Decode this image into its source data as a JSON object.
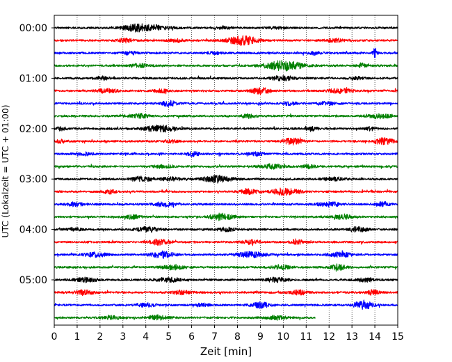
{
  "chart_data": {
    "type": "line",
    "title": "",
    "xlabel": "Zeit  [min]",
    "ylabel": "UTC (Lokalzeit = UTC + 01:00)",
    "xlim": [
      0,
      15
    ],
    "x_ticks": [
      "0",
      "1",
      "2",
      "3",
      "4",
      "5",
      "6",
      "7",
      "8",
      "9",
      "10",
      "11",
      "12",
      "13",
      "14",
      "15"
    ],
    "y_ticks": [
      "00:00",
      "01:00",
      "02:00",
      "03:00",
      "04:00",
      "05:00"
    ],
    "grid": "vertical dotted lines at each minute",
    "line_colors": [
      "#000000",
      "#ff0000",
      "#0000ff",
      "#008000"
    ],
    "trace_minutes": 15,
    "last_trace_end_minute": 11.4,
    "series": [
      {
        "start": "00:00",
        "color": "#000000",
        "events": [
          [
            4.1,
            0.5,
            0.9
          ],
          [
            3.5,
            0.3,
            0.5
          ],
          [
            7.3,
            0.2,
            0.4
          ],
          [
            9.8,
            0.2,
            0.4
          ]
        ]
      },
      {
        "start": "00:15",
        "color": "#ff0000",
        "events": [
          [
            8.2,
            0.9,
            0.6
          ],
          [
            5.3,
            0.3,
            0.3
          ],
          [
            3.1,
            0.3,
            0.4
          ],
          [
            12.3,
            0.3,
            0.4
          ]
        ]
      },
      {
        "start": "00:30",
        "color": "#0000ff",
        "events": [
          [
            14.0,
            0.8,
            0.1
          ],
          [
            3.3,
            0.3,
            0.3
          ],
          [
            7.0,
            0.2,
            0.3
          ],
          [
            11.4,
            0.25,
            0.3
          ]
        ]
      },
      {
        "start": "00:45",
        "color": "#008000",
        "events": [
          [
            10.0,
            0.9,
            0.8
          ],
          [
            3.7,
            0.3,
            0.4
          ],
          [
            13.4,
            0.4,
            0.2
          ]
        ]
      },
      {
        "start": "01:00",
        "color": "#000000",
        "events": [
          [
            10.0,
            0.4,
            0.5
          ],
          [
            2.1,
            0.3,
            0.3
          ],
          [
            13.2,
            0.25,
            0.3
          ]
        ]
      },
      {
        "start": "01:15",
        "color": "#ff0000",
        "events": [
          [
            9.0,
            0.6,
            0.4
          ],
          [
            2.3,
            0.4,
            0.4
          ],
          [
            12.5,
            0.4,
            0.5
          ],
          [
            4.7,
            0.3,
            0.3
          ]
        ]
      },
      {
        "start": "01:30",
        "color": "#0000ff",
        "events": [
          [
            5.0,
            0.5,
            0.3
          ],
          [
            10.3,
            0.3,
            0.3
          ],
          [
            11.9,
            0.3,
            0.4
          ]
        ]
      },
      {
        "start": "01:45",
        "color": "#008000",
        "events": [
          [
            3.7,
            0.4,
            0.4
          ],
          [
            8.5,
            0.3,
            0.3
          ],
          [
            14.2,
            0.4,
            0.5
          ]
        ]
      },
      {
        "start": "02:00",
        "color": "#000000",
        "events": [
          [
            4.6,
            0.6,
            0.6
          ],
          [
            0.3,
            0.3,
            0.2
          ],
          [
            11.3,
            0.3,
            0.3
          ],
          [
            13.8,
            0.3,
            0.2
          ]
        ]
      },
      {
        "start": "02:15",
        "color": "#ff0000",
        "events": [
          [
            10.4,
            0.6,
            0.4
          ],
          [
            14.4,
            0.6,
            0.4
          ],
          [
            0.3,
            0.3,
            0.2
          ],
          [
            5.1,
            0.25,
            0.3
          ]
        ]
      },
      {
        "start": "02:30",
        "color": "#0000ff",
        "events": [
          [
            6.1,
            0.4,
            0.3
          ],
          [
            8.8,
            0.3,
            0.3
          ],
          [
            1.4,
            0.25,
            0.3
          ]
        ]
      },
      {
        "start": "02:45",
        "color": "#008000",
        "events": [
          [
            9.5,
            0.4,
            0.5
          ],
          [
            4.7,
            0.3,
            0.4
          ],
          [
            11.1,
            0.3,
            0.3
          ]
        ]
      },
      {
        "start": "03:00",
        "color": "#000000",
        "events": [
          [
            7.1,
            0.6,
            0.6
          ],
          [
            3.8,
            0.4,
            0.5
          ],
          [
            12.2,
            0.3,
            0.5
          ],
          [
            5.1,
            0.3,
            0.4
          ]
        ]
      },
      {
        "start": "03:15",
        "color": "#ff0000",
        "events": [
          [
            10.1,
            0.6,
            0.6
          ],
          [
            8.5,
            0.4,
            0.4
          ],
          [
            2.4,
            0.3,
            0.3
          ]
        ]
      },
      {
        "start": "03:30",
        "color": "#0000ff",
        "events": [
          [
            4.8,
            0.4,
            0.5
          ],
          [
            12.0,
            0.4,
            0.5
          ],
          [
            14.3,
            0.4,
            0.3
          ],
          [
            0.9,
            0.3,
            0.4
          ]
        ]
      },
      {
        "start": "03:45",
        "color": "#008000",
        "events": [
          [
            7.3,
            0.6,
            0.5
          ],
          [
            12.6,
            0.4,
            0.4
          ],
          [
            3.4,
            0.3,
            0.4
          ]
        ]
      },
      {
        "start": "04:00",
        "color": "#000000",
        "events": [
          [
            4.1,
            0.4,
            0.5
          ],
          [
            13.3,
            0.4,
            0.4
          ],
          [
            0.9,
            0.3,
            0.3
          ],
          [
            7.5,
            0.3,
            0.4
          ]
        ]
      },
      {
        "start": "04:15",
        "color": "#ff0000",
        "events": [
          [
            4.6,
            0.5,
            0.4
          ],
          [
            10.6,
            0.4,
            0.3
          ],
          [
            8.6,
            0.3,
            0.4
          ]
        ]
      },
      {
        "start": "04:30",
        "color": "#0000ff",
        "events": [
          [
            4.7,
            0.6,
            0.5
          ],
          [
            8.6,
            0.5,
            0.6
          ],
          [
            12.5,
            0.4,
            0.5
          ],
          [
            1.8,
            0.35,
            0.5
          ]
        ]
      },
      {
        "start": "04:45",
        "color": "#008000",
        "events": [
          [
            12.4,
            0.5,
            0.3
          ],
          [
            5.2,
            0.4,
            0.5
          ],
          [
            9.9,
            0.35,
            0.4
          ]
        ]
      },
      {
        "start": "05:00",
        "color": "#000000",
        "events": [
          [
            1.4,
            0.4,
            0.5
          ],
          [
            5.0,
            0.4,
            0.5
          ],
          [
            9.7,
            0.35,
            0.5
          ],
          [
            13.6,
            0.3,
            0.4
          ]
        ]
      },
      {
        "start": "05:15",
        "color": "#ff0000",
        "events": [
          [
            1.3,
            0.4,
            0.4
          ],
          [
            5.6,
            0.35,
            0.4
          ],
          [
            10.7,
            0.4,
            0.4
          ],
          [
            13.9,
            0.4,
            0.3
          ]
        ]
      },
      {
        "start": "05:30",
        "color": "#0000ff",
        "events": [
          [
            13.5,
            0.8,
            0.4
          ],
          [
            9.0,
            0.5,
            0.4
          ],
          [
            4.0,
            0.35,
            0.4
          ],
          [
            6.5,
            0.3,
            0.3
          ]
        ]
      },
      {
        "start": "05:45",
        "color": "#008000",
        "events": [
          [
            4.5,
            0.4,
            0.4
          ],
          [
            9.7,
            0.35,
            0.4
          ],
          [
            2.5,
            0.3,
            0.4
          ]
        ]
      }
    ]
  }
}
